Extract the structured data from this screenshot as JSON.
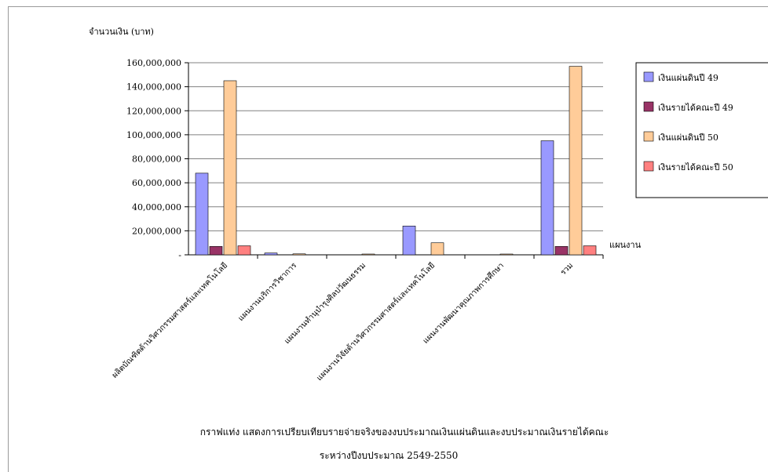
{
  "chart_data": {
    "type": "bar",
    "ylabel": "จำนวนเงิน (บาท)",
    "xlabel": "แผนงาน",
    "ylim": [
      0,
      160000000
    ],
    "y_tick_labels": [
      "-",
      "20,000,000",
      "40,000,000",
      "60,000,000",
      "80,000,000",
      "100,000,000",
      "120,000,000",
      "140,000,000",
      "160,000,000"
    ],
    "categories": [
      "ผลิตบัณฑิตด้านวิศวกรรมศาสตร์และเทคโนโลยี",
      "แผนงานบริการวิชาการ",
      "แผนงานทำนุบำรุงศิลปวัฒนธรรม",
      "แผนงานวิจัยด้านวิศวกรรมศาสตร์และเทคโนโลยี",
      "แผนงานพัฒนาคุณภาพการศึกษา",
      "รวม"
    ],
    "series": [
      {
        "name": "เงินแผ่นดินปี 49",
        "color": "#9999ff",
        "values": [
          68000000,
          1500000,
          0,
          24000000,
          0,
          95000000
        ]
      },
      {
        "name": "เงินรายได้คณะปี 49",
        "color": "#993366",
        "values": [
          7000000,
          0,
          0,
          0,
          0,
          7000000
        ]
      },
      {
        "name": "เงินแผ่นดินปี 50",
        "color": "#ffcc99",
        "values": [
          145000000,
          800000,
          600000,
          10000000,
          500000,
          157000000
        ]
      },
      {
        "name": "เงินรายได้คณะปี 50",
        "color": "#ff8080",
        "values": [
          7500000,
          0,
          0,
          0,
          0,
          7500000
        ]
      }
    ],
    "grid": true,
    "legend_position": "right",
    "caption_line1": "กราฟแท่ง แสดงการเปรียบเทียบรายจ่ายจริงของงบประมาณเงินแผ่นดินและงบประมาณเงินรายได้คณะ",
    "caption_line2": "ระหว่างปีงบประมาณ 2549-2550"
  }
}
